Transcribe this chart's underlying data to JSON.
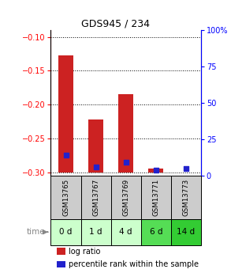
{
  "title": "GDS945 / 234",
  "samples": [
    "GSM13765",
    "GSM13767",
    "GSM13769",
    "GSM13771",
    "GSM13773"
  ],
  "time_labels": [
    "0 d",
    "1 d",
    "4 d",
    "6 d",
    "14 d"
  ],
  "log_ratios": [
    -0.128,
    -0.222,
    -0.185,
    -0.295,
    -0.3
  ],
  "percentile_ranks_pct": [
    14,
    6,
    9,
    4,
    5
  ],
  "bar_color": "#cc2222",
  "pct_color": "#2222cc",
  "ylim_left": [
    -0.305,
    -0.09
  ],
  "ylim_right": [
    0,
    100
  ],
  "yticks_left": [
    -0.3,
    -0.25,
    -0.2,
    -0.15,
    -0.1
  ],
  "yticks_right": [
    0,
    25,
    50,
    75,
    100
  ],
  "sample_bg": "#cccccc",
  "time_bg_colors": [
    "#ccffcc",
    "#ccffcc",
    "#ccffcc",
    "#55dd55",
    "#33cc33"
  ],
  "bar_width": 0.5,
  "bar_bottom": -0.3,
  "figsize": [
    2.93,
    3.45
  ],
  "dpi": 100
}
